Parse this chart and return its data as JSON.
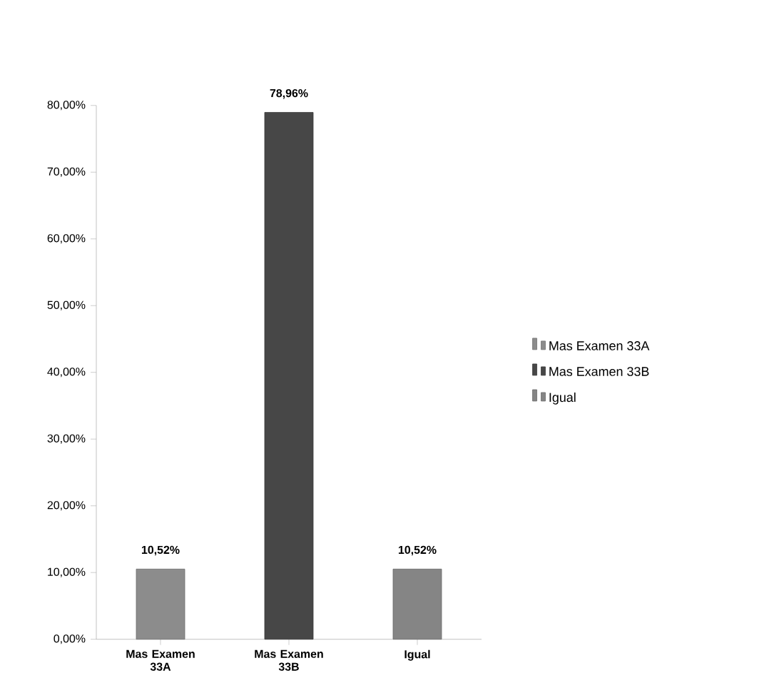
{
  "chart_data": {
    "type": "bar",
    "categories": [
      "Mas Examen 33A",
      "Mas Examen 33B",
      "Igual"
    ],
    "series": [
      {
        "name": "Mas Examen 33A",
        "color": "#8c8c8c",
        "values": [
          10.52,
          null,
          null
        ],
        "value_labels": [
          "10,52%",
          null,
          null
        ]
      },
      {
        "name": "Mas Examen 33B",
        "color": "#474747",
        "values": [
          null,
          78.96,
          null
        ],
        "value_labels": [
          null,
          "78,96%",
          null
        ]
      },
      {
        "name": "Igual",
        "color": "#858585",
        "values": [
          null,
          null,
          10.52
        ],
        "value_labels": [
          null,
          null,
          "10,52%"
        ]
      }
    ],
    "ylim": [
      0,
      80
    ],
    "yticks": [
      {
        "value": 0,
        "label": "0,00%"
      },
      {
        "value": 10,
        "label": "10,00%"
      },
      {
        "value": 20,
        "label": "20,00%"
      },
      {
        "value": 30,
        "label": "30,00%"
      },
      {
        "value": 40,
        "label": "40,00%"
      },
      {
        "value": 50,
        "label": "50,00%"
      },
      {
        "value": 60,
        "label": "60,00%"
      },
      {
        "value": 70,
        "label": "70,00%"
      },
      {
        "value": 80,
        "label": "80,00%"
      }
    ],
    "grid": false,
    "legend": "right"
  }
}
